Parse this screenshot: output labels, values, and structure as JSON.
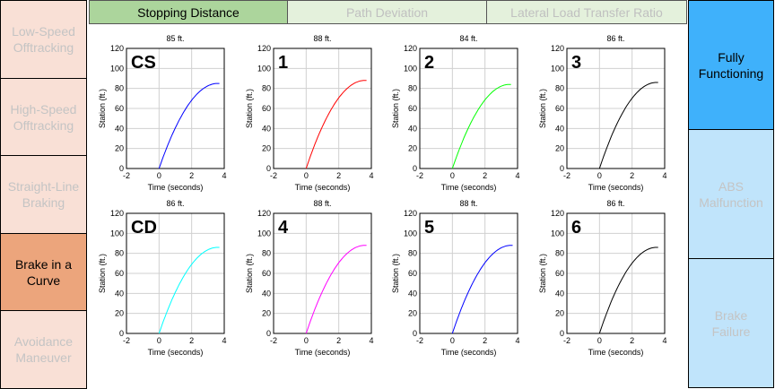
{
  "left_nav": [
    {
      "label_lines": [
        "Low-Speed",
        "Offtracking"
      ],
      "active": false
    },
    {
      "label_lines": [
        "High-Speed",
        "Offtracking"
      ],
      "active": false
    },
    {
      "label_lines": [
        "Straight-Line",
        "Braking"
      ],
      "active": false
    },
    {
      "label_lines": [
        "Brake in a",
        "Curve"
      ],
      "active": true
    },
    {
      "label_lines": [
        "Avoidance",
        "Maneuver"
      ],
      "active": false
    }
  ],
  "tabs": [
    {
      "label": "Stopping Distance",
      "active": true
    },
    {
      "label": "Path Deviation",
      "active": false
    },
    {
      "label": "Lateral Load Transfer Ratio",
      "active": false
    }
  ],
  "right_nav": [
    {
      "label_lines": [
        "Fully",
        "Functioning"
      ],
      "active": true
    },
    {
      "label_lines": [
        "ABS",
        "Malfunction"
      ],
      "active": false
    },
    {
      "label_lines": [
        "Brake",
        "Failure"
      ],
      "active": false
    }
  ],
  "chart_data": [
    {
      "type": "line",
      "label": "CS",
      "title": "85 ft.",
      "final_distance": 85,
      "color": "#0000ff",
      "xlabel": "Time (seconds)",
      "ylabel": "Station (ft.)",
      "xlim": [
        -2,
        4
      ],
      "ylim": [
        0,
        120
      ],
      "xticks": [
        -2,
        0,
        2,
        4
      ],
      "yticks": [
        0,
        20,
        40,
        60,
        80,
        100,
        120
      ],
      "stop_time": 3.6,
      "grid": true
    },
    {
      "type": "line",
      "label": "1",
      "title": "88 ft.",
      "final_distance": 88,
      "color": "#ff0000",
      "xlabel": "Time (seconds)",
      "ylabel": "Station (ft.)",
      "xlim": [
        -2,
        4
      ],
      "ylim": [
        0,
        120
      ],
      "xticks": [
        -2,
        0,
        2,
        4
      ],
      "yticks": [
        0,
        20,
        40,
        60,
        80,
        100,
        120
      ],
      "stop_time": 3.6,
      "grid": true
    },
    {
      "type": "line",
      "label": "2",
      "title": "84 ft.",
      "final_distance": 84,
      "color": "#00ff00",
      "xlabel": "Time (seconds)",
      "ylabel": "Station (ft.)",
      "xlim": [
        -2,
        4
      ],
      "ylim": [
        0,
        120
      ],
      "xticks": [
        -2,
        0,
        2,
        4
      ],
      "yticks": [
        0,
        20,
        40,
        60,
        80,
        100,
        120
      ],
      "stop_time": 3.5,
      "grid": true
    },
    {
      "type": "line",
      "label": "3",
      "title": "86 ft.",
      "final_distance": 86,
      "color": "#000000",
      "xlabel": "Time (seconds)",
      "ylabel": "Station (ft.)",
      "xlim": [
        -2,
        4
      ],
      "ylim": [
        0,
        120
      ],
      "xticks": [
        -2,
        0,
        2,
        4
      ],
      "yticks": [
        0,
        20,
        40,
        60,
        80,
        100,
        120
      ],
      "stop_time": 3.5,
      "grid": true
    },
    {
      "type": "line",
      "label": "CD",
      "title": "86 ft.",
      "final_distance": 86,
      "color": "#00ffff",
      "xlabel": "Time (seconds)",
      "ylabel": "Station (ft.)",
      "xlim": [
        -2,
        4
      ],
      "ylim": [
        0,
        120
      ],
      "xticks": [
        -2,
        0,
        2,
        4
      ],
      "yticks": [
        0,
        20,
        40,
        60,
        80,
        100,
        120
      ],
      "stop_time": 3.6,
      "grid": true
    },
    {
      "type": "line",
      "label": "4",
      "title": "88 ft.",
      "final_distance": 88,
      "color": "#ff00ff",
      "xlabel": "Time (seconds)",
      "ylabel": "Station (ft.)",
      "xlim": [
        -2,
        4
      ],
      "ylim": [
        0,
        120
      ],
      "xticks": [
        -2,
        0,
        2,
        4
      ],
      "yticks": [
        0,
        20,
        40,
        60,
        80,
        100,
        120
      ],
      "stop_time": 3.6,
      "grid": true
    },
    {
      "type": "line",
      "label": "5",
      "title": "88 ft.",
      "final_distance": 88,
      "color": "#0000ff",
      "xlabel": "Time (seconds)",
      "ylabel": "Station (ft.)",
      "xlim": [
        -2,
        4
      ],
      "ylim": [
        0,
        120
      ],
      "xticks": [
        -2,
        0,
        2,
        4
      ],
      "yticks": [
        0,
        20,
        40,
        60,
        80,
        100,
        120
      ],
      "stop_time": 3.6,
      "grid": true
    },
    {
      "type": "line",
      "label": "6",
      "title": "86 ft.",
      "final_distance": 86,
      "color": "#000000",
      "xlabel": "Time (seconds)",
      "ylabel": "Station (ft.)",
      "xlim": [
        -2,
        4
      ],
      "ylim": [
        0,
        120
      ],
      "xticks": [
        -2,
        0,
        2,
        4
      ],
      "yticks": [
        0,
        20,
        40,
        60,
        80,
        100,
        120
      ],
      "stop_time": 3.5,
      "grid": true
    }
  ]
}
